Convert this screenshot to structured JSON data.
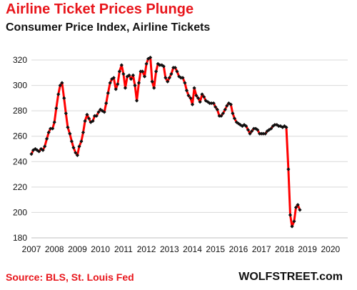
{
  "title": "Airline Ticket Prices Plunge",
  "subtitle": "Consumer Price Index, Airline Tickets",
  "source": "Source: BLS, St. Louis Fed",
  "brand": "WOLFSTREET.com",
  "colors": {
    "title": "#e8151b",
    "line": "#ff0000",
    "marker": "#111111",
    "grid": "#d9d9d9"
  },
  "chart_data": {
    "type": "line",
    "title": "Consumer Price Index, Airline Tickets",
    "xlabel": "",
    "ylabel": "",
    "xlim": [
      2007,
      2020.75
    ],
    "ylim": [
      180,
      320
    ],
    "yticks": [
      180,
      200,
      220,
      240,
      260,
      280,
      300,
      320
    ],
    "xticks": [
      "2007",
      "2008",
      "2009",
      "2010",
      "2011",
      "2012",
      "2013",
      "2014",
      "2015",
      "2016",
      "2017",
      "2018",
      "2019",
      "2020"
    ],
    "grid": "horizontal",
    "marker": "diamond",
    "series": [
      {
        "name": "",
        "points": [
          [
            2007.0,
            246
          ],
          [
            2007.08,
            249
          ],
          [
            2007.17,
            250
          ],
          [
            2007.25,
            249
          ],
          [
            2007.33,
            248
          ],
          [
            2007.42,
            250
          ],
          [
            2007.5,
            249
          ],
          [
            2007.58,
            252
          ],
          [
            2007.67,
            258
          ],
          [
            2007.75,
            263
          ],
          [
            2007.83,
            266
          ],
          [
            2007.92,
            266
          ],
          [
            2008.0,
            271
          ],
          [
            2008.08,
            282
          ],
          [
            2008.17,
            293
          ],
          [
            2008.25,
            300
          ],
          [
            2008.33,
            302
          ],
          [
            2008.42,
            290
          ],
          [
            2008.5,
            278
          ],
          [
            2008.58,
            267
          ],
          [
            2008.67,
            262
          ],
          [
            2008.75,
            256
          ],
          [
            2008.83,
            251
          ],
          [
            2008.92,
            247
          ],
          [
            2009.0,
            245
          ],
          [
            2009.08,
            252
          ],
          [
            2009.17,
            256
          ],
          [
            2009.25,
            263
          ],
          [
            2009.33,
            272
          ],
          [
            2009.42,
            277
          ],
          [
            2009.5,
            274
          ],
          [
            2009.58,
            271
          ],
          [
            2009.67,
            272
          ],
          [
            2009.75,
            276
          ],
          [
            2009.83,
            276
          ],
          [
            2009.92,
            279
          ],
          [
            2010.0,
            281
          ],
          [
            2010.08,
            280
          ],
          [
            2010.17,
            279
          ],
          [
            2010.25,
            286
          ],
          [
            2010.33,
            294
          ],
          [
            2010.42,
            302
          ],
          [
            2010.5,
            305
          ],
          [
            2010.58,
            306
          ],
          [
            2010.67,
            297
          ],
          [
            2010.75,
            301
          ],
          [
            2010.83,
            311
          ],
          [
            2010.92,
            316
          ],
          [
            2011.0,
            309
          ],
          [
            2011.08,
            298
          ],
          [
            2011.17,
            307
          ],
          [
            2011.25,
            308
          ],
          [
            2011.33,
            305
          ],
          [
            2011.42,
            308
          ],
          [
            2011.5,
            300
          ],
          [
            2011.58,
            288
          ],
          [
            2011.67,
            302
          ],
          [
            2011.75,
            311
          ],
          [
            2011.83,
            311
          ],
          [
            2011.92,
            307
          ],
          [
            2012.0,
            317
          ],
          [
            2012.08,
            321
          ],
          [
            2012.17,
            322
          ],
          [
            2012.25,
            303
          ],
          [
            2012.33,
            298
          ],
          [
            2012.42,
            311
          ],
          [
            2012.5,
            317
          ],
          [
            2012.58,
            316
          ],
          [
            2012.67,
            316
          ],
          [
            2012.75,
            315
          ],
          [
            2012.83,
            306
          ],
          [
            2012.92,
            303
          ],
          [
            2013.0,
            306
          ],
          [
            2013.08,
            309
          ],
          [
            2013.17,
            314
          ],
          [
            2013.25,
            314
          ],
          [
            2013.33,
            311
          ],
          [
            2013.42,
            307
          ],
          [
            2013.5,
            306
          ],
          [
            2013.58,
            306
          ],
          [
            2013.67,
            302
          ],
          [
            2013.75,
            296
          ],
          [
            2013.83,
            292
          ],
          [
            2013.92,
            290
          ],
          [
            2014.0,
            285
          ],
          [
            2014.08,
            298
          ],
          [
            2014.17,
            292
          ],
          [
            2014.25,
            290
          ],
          [
            2014.33,
            287
          ],
          [
            2014.42,
            293
          ],
          [
            2014.5,
            291
          ],
          [
            2014.58,
            288
          ],
          [
            2014.67,
            287
          ],
          [
            2014.75,
            286
          ],
          [
            2014.83,
            286
          ],
          [
            2014.92,
            286
          ],
          [
            2015.0,
            283
          ],
          [
            2015.08,
            281
          ],
          [
            2015.17,
            276
          ],
          [
            2015.25,
            276
          ],
          [
            2015.33,
            278
          ],
          [
            2015.42,
            281
          ],
          [
            2015.5,
            284
          ],
          [
            2015.58,
            286
          ],
          [
            2015.67,
            285
          ],
          [
            2015.75,
            278
          ],
          [
            2015.83,
            274
          ],
          [
            2015.92,
            271
          ],
          [
            2016.0,
            270
          ],
          [
            2016.08,
            269
          ],
          [
            2016.17,
            268
          ],
          [
            2016.25,
            269
          ],
          [
            2016.33,
            268
          ],
          [
            2016.42,
            265
          ],
          [
            2016.5,
            262
          ],
          [
            2016.58,
            264
          ],
          [
            2016.67,
            266
          ],
          [
            2016.75,
            266
          ],
          [
            2016.83,
            265
          ],
          [
            2016.92,
            262
          ],
          [
            2017.0,
            262
          ],
          [
            2017.08,
            262
          ],
          [
            2017.17,
            262
          ],
          [
            2017.25,
            264
          ],
          [
            2017.33,
            265
          ],
          [
            2017.42,
            266
          ],
          [
            2017.5,
            268
          ],
          [
            2017.58,
            269
          ],
          [
            2017.67,
            269
          ],
          [
            2017.75,
            268
          ],
          [
            2017.83,
            268
          ],
          [
            2017.92,
            267
          ],
          [
            2018.0,
            268
          ],
          [
            2018.08,
            267
          ],
          [
            2018.17,
            234
          ],
          [
            2018.25,
            198
          ],
          [
            2018.33,
            189
          ],
          [
            2018.42,
            193
          ],
          [
            2018.5,
            204
          ],
          [
            2018.58,
            206
          ],
          [
            2018.67,
            202
          ]
        ]
      }
    ]
  }
}
